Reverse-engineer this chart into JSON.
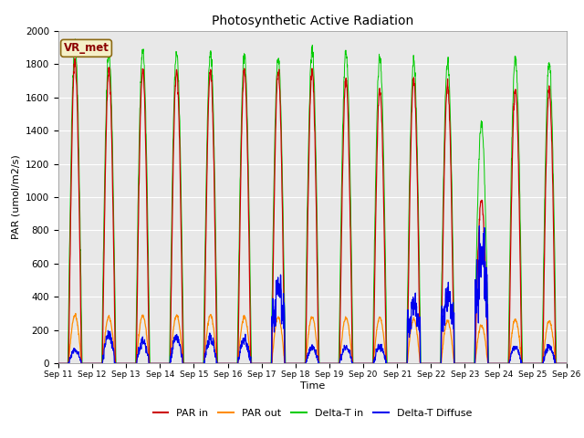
{
  "title": "Photosynthetic Active Radiation",
  "ylabel": "PAR (umol/m2/s)",
  "xlabel": "Time",
  "ylim": [
    0,
    2000
  ],
  "yticks": [
    0,
    200,
    400,
    600,
    800,
    1000,
    1200,
    1400,
    1600,
    1800,
    2000
  ],
  "date_labels": [
    "Sep 11",
    "Sep 12",
    "Sep 13",
    "Sep 14",
    "Sep 15",
    "Sep 16",
    "Sep 17",
    "Sep 18",
    "Sep 19",
    "Sep 20",
    "Sep 21",
    "Sep 22",
    "Sep 23",
    "Sep 24",
    "Sep 25",
    "Sep 26"
  ],
  "annotation_label": "VR_met",
  "annotation_color": "#8B0000",
  "annotation_bg": "#F5F0C8",
  "bg_color": "#E8E8E8",
  "legend_entries": [
    "PAR in",
    "PAR out",
    "Delta-T in",
    "Delta-T Diffuse"
  ],
  "line_colors": [
    "#CC0000",
    "#FF8C00",
    "#00CC00",
    "#0000EE"
  ],
  "n_days": 15,
  "pts_per_day": 144,
  "par_in_peaks": [
    1820,
    1760,
    1760,
    1760,
    1760,
    1760,
    1760,
    1760,
    1700,
    1650,
    1700,
    1680,
    980,
    1650,
    1650
  ],
  "par_out_peaks": [
    290,
    280,
    290,
    290,
    290,
    280,
    280,
    280,
    275,
    275,
    265,
    255,
    230,
    265,
    255
  ],
  "delta_t_in_peaks": [
    1920,
    1870,
    1880,
    1870,
    1865,
    1845,
    1840,
    1880,
    1870,
    1855,
    1810,
    1810,
    1440,
    1835,
    1810
  ],
  "delta_t_diff_peaks": [
    80,
    180,
    130,
    160,
    150,
    145,
    450,
    100,
    100,
    100,
    350,
    400,
    650,
    100,
    100
  ]
}
